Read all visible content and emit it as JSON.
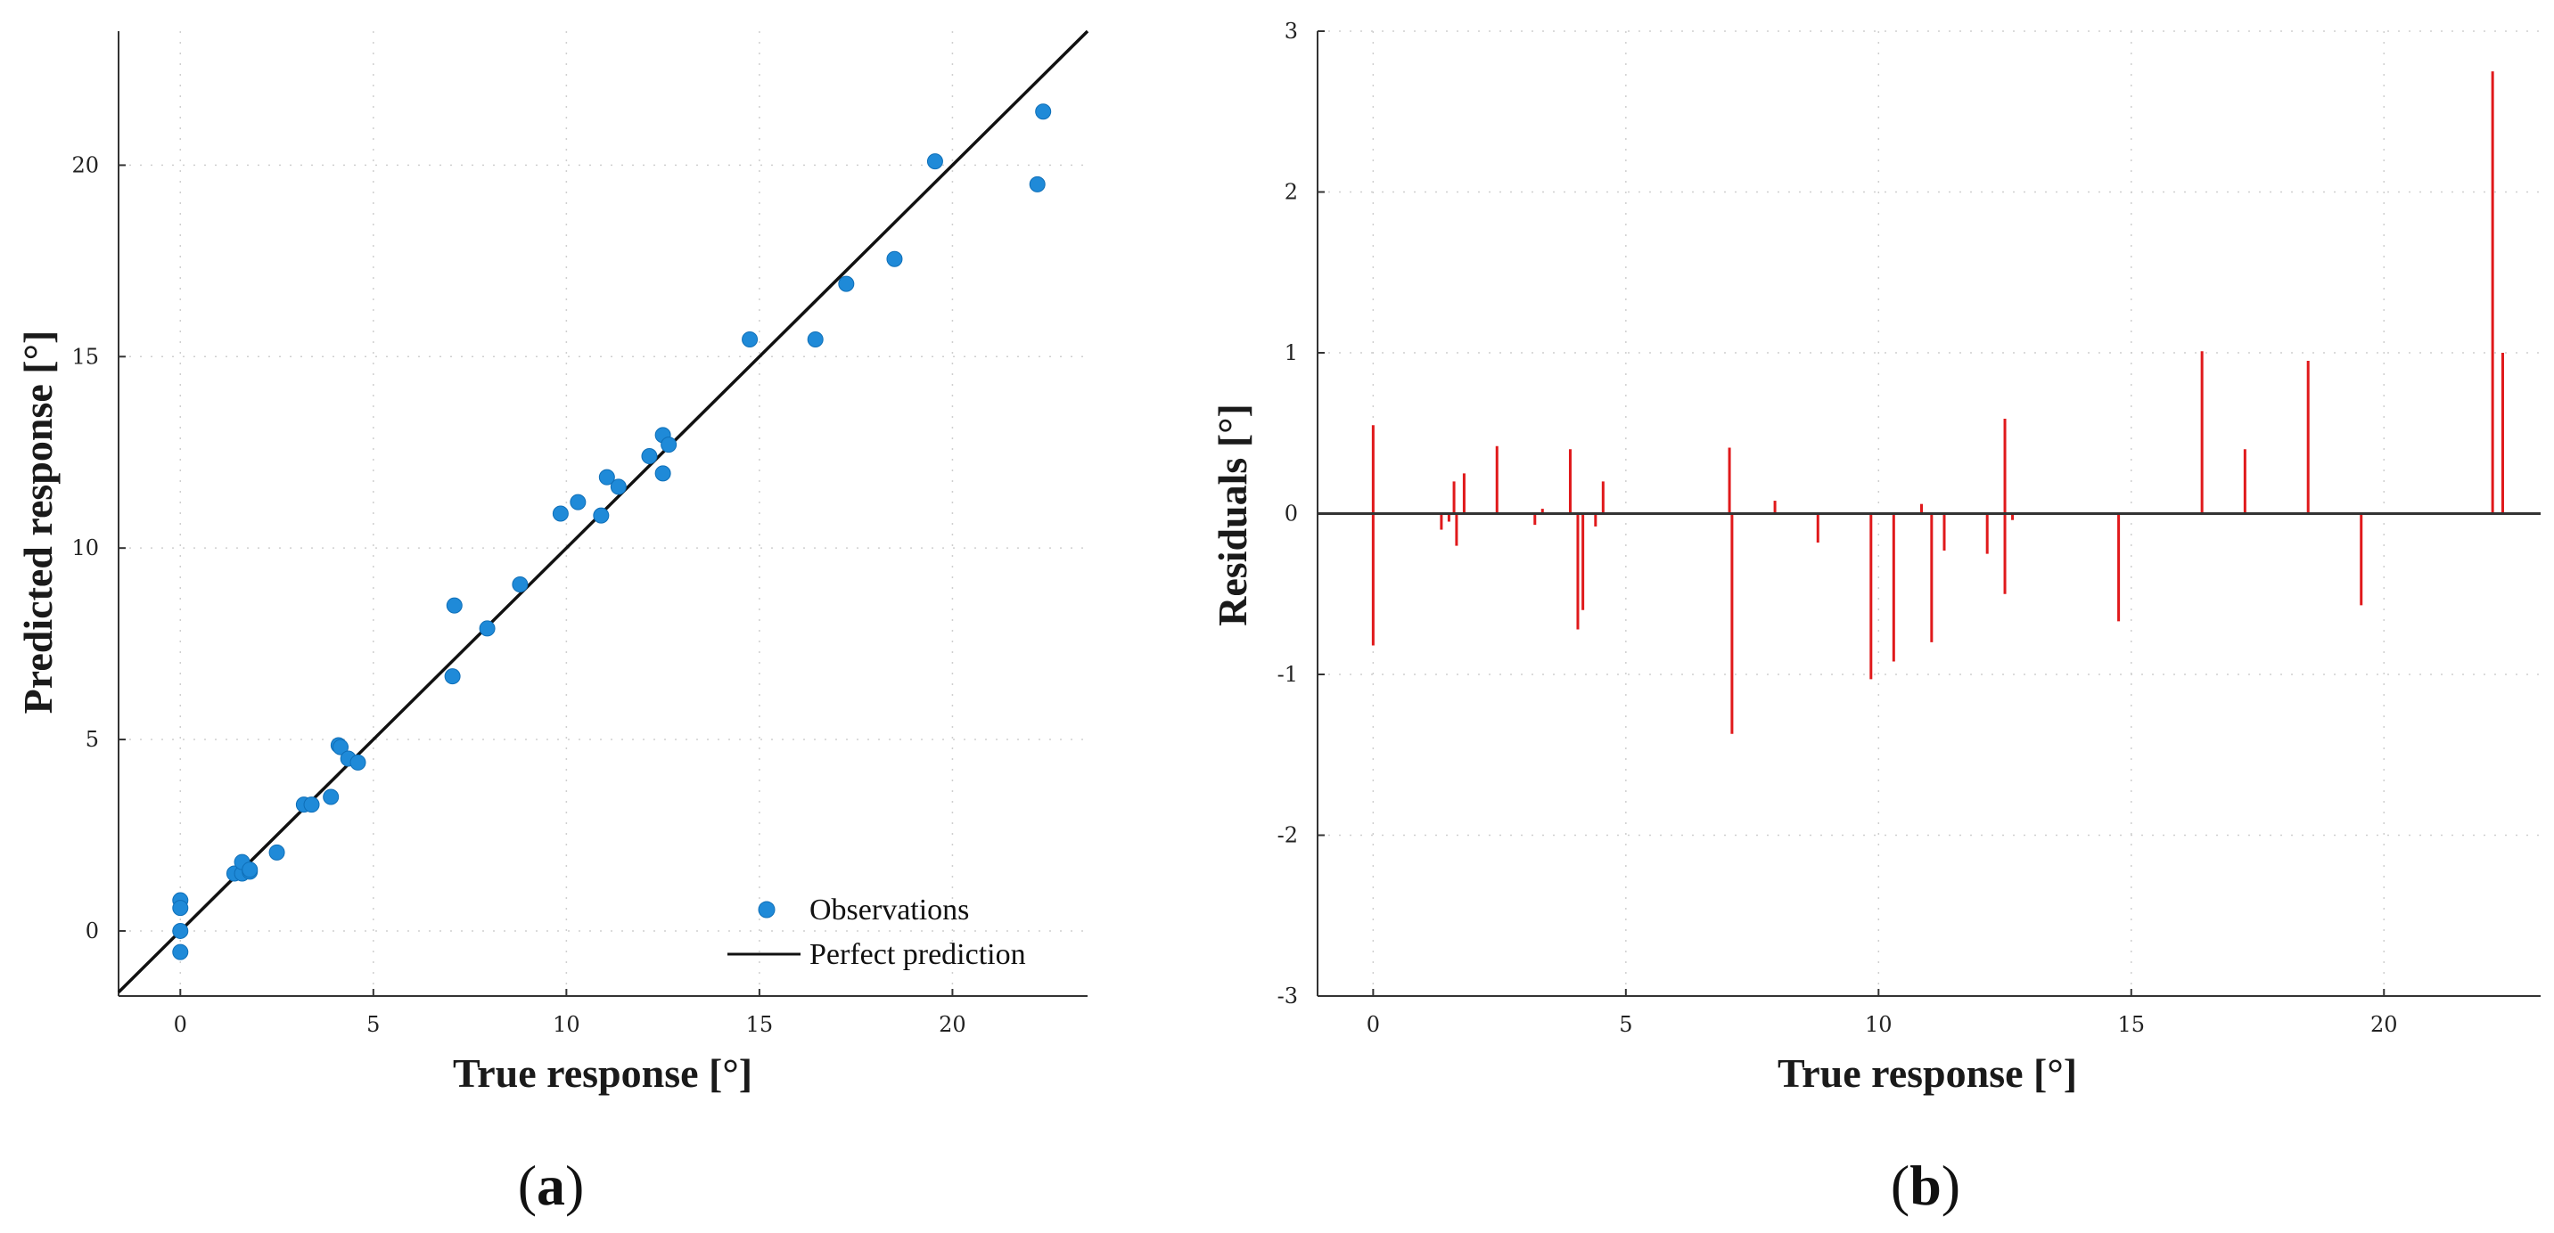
{
  "colors": {
    "observations": "#1f8ad8",
    "perfect_line": "#111111",
    "residual_bars": "#e0191b",
    "zero_line": "#333333",
    "axis": "#333333",
    "grid": "#cfcfcf"
  },
  "chart_data": [
    {
      "type": "scatter",
      "panel_label": "a",
      "xlabel": "True response [°]",
      "ylabel": "Predicted response [°]",
      "xlim": [
        -1.6,
        23.5
      ],
      "ylim": [
        -1.7,
        23.5
      ],
      "xticks": [
        0,
        5,
        10,
        15,
        20
      ],
      "yticks": [
        0,
        5,
        10,
        15,
        20
      ],
      "grid": "dotted",
      "legend_position": "bottom-right",
      "series": [
        {
          "name": "Observations",
          "kind": "points",
          "points": [
            [
              0,
              0.8
            ],
            [
              0,
              0.6
            ],
            [
              0,
              0.0
            ],
            [
              0,
              -0.55
            ],
            [
              1.4,
              1.5
            ],
            [
              1.6,
              1.5
            ],
            [
              1.6,
              1.8
            ],
            [
              1.8,
              1.55
            ],
            [
              1.8,
              1.6
            ],
            [
              2.5,
              2.05
            ],
            [
              3.2,
              3.3
            ],
            [
              3.4,
              3.3
            ],
            [
              3.9,
              3.5
            ],
            [
              4.1,
              4.85
            ],
            [
              4.15,
              4.8
            ],
            [
              4.35,
              4.5
            ],
            [
              4.6,
              4.4
            ],
            [
              7.05,
              6.65
            ],
            [
              7.1,
              8.5
            ],
            [
              7.95,
              7.9
            ],
            [
              8.8,
              9.05
            ],
            [
              9.85,
              10.9
            ],
            [
              10.3,
              11.2
            ],
            [
              10.9,
              10.85
            ],
            [
              11.05,
              11.85
            ],
            [
              11.35,
              11.6
            ],
            [
              12.15,
              12.4
            ],
            [
              12.5,
              12.95
            ],
            [
              12.5,
              11.95
            ],
            [
              12.65,
              12.7
            ],
            [
              14.75,
              15.45
            ],
            [
              16.45,
              15.45
            ],
            [
              17.25,
              16.9
            ],
            [
              18.5,
              17.55
            ],
            [
              19.55,
              20.1
            ],
            [
              22.2,
              19.5
            ],
            [
              22.35,
              21.4
            ]
          ]
        },
        {
          "name": "Perfect prediction",
          "kind": "line",
          "points": [
            [
              -1.6,
              -1.6
            ],
            [
              23.5,
              23.5
            ]
          ]
        }
      ]
    },
    {
      "type": "bar",
      "panel_label": "b",
      "xlabel": "True response [°]",
      "ylabel": "Residuals [°]",
      "xlim": [
        -1.1,
        23.1
      ],
      "ylim": [
        -3,
        3
      ],
      "xticks": [
        0,
        5,
        10,
        15,
        20
      ],
      "yticks": [
        -3,
        -2,
        -1,
        0,
        1,
        2,
        3
      ],
      "grid": "dotted",
      "series": [
        {
          "name": "Residuals",
          "stems": [
            [
              0,
              0.55
            ],
            [
              0,
              -0.82
            ],
            [
              1.35,
              -0.1
            ],
            [
              1.5,
              -0.05
            ],
            [
              1.6,
              0.2
            ],
            [
              1.65,
              -0.2
            ],
            [
              1.8,
              0.25
            ],
            [
              2.45,
              0.42
            ],
            [
              3.2,
              -0.07
            ],
            [
              3.35,
              0.03
            ],
            [
              3.9,
              0.4
            ],
            [
              4.05,
              -0.72
            ],
            [
              4.15,
              -0.6
            ],
            [
              4.4,
              -0.08
            ],
            [
              4.55,
              0.2
            ],
            [
              7.05,
              0.41
            ],
            [
              7.1,
              -1.37
            ],
            [
              7.95,
              0.08
            ],
            [
              8.8,
              -0.18
            ],
            [
              9.85,
              -1.03
            ],
            [
              10.3,
              -0.92
            ],
            [
              10.85,
              0.06
            ],
            [
              11.05,
              -0.8
            ],
            [
              11.3,
              -0.23
            ],
            [
              12.15,
              -0.25
            ],
            [
              12.5,
              0.59
            ],
            [
              12.5,
              -0.5
            ],
            [
              12.65,
              -0.04
            ],
            [
              14.75,
              -0.67
            ],
            [
              16.4,
              1.01
            ],
            [
              17.25,
              0.4
            ],
            [
              18.5,
              0.95
            ],
            [
              19.55,
              -0.57
            ],
            [
              22.15,
              2.75
            ],
            [
              22.35,
              1.0
            ]
          ]
        }
      ]
    }
  ]
}
